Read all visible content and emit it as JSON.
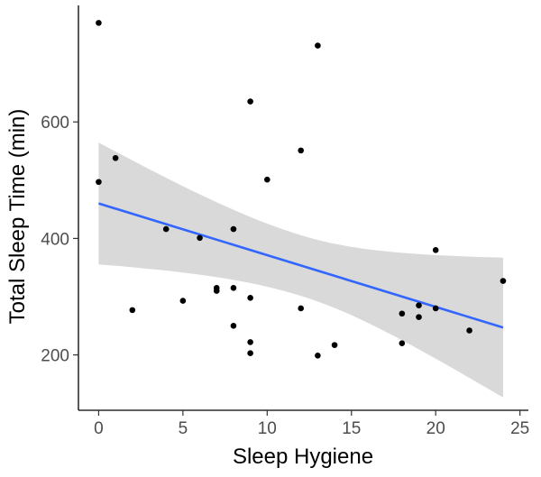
{
  "chart_data": {
    "type": "scatter",
    "title": "",
    "xlabel": "Sleep Hygiene",
    "ylabel": "Total Sleep Time (min)",
    "xlim": [
      -1.2,
      25.5
    ],
    "ylim": [
      105,
      800
    ],
    "xticks": [
      0,
      5,
      10,
      15,
      20,
      25
    ],
    "yticks": [
      200,
      400,
      600
    ],
    "grid": false,
    "legend": "none",
    "points": [
      {
        "x": 0,
        "y": 770
      },
      {
        "x": 0,
        "y": 497
      },
      {
        "x": 1,
        "y": 538
      },
      {
        "x": 2,
        "y": 277
      },
      {
        "x": 4,
        "y": 416
      },
      {
        "x": 5,
        "y": 293
      },
      {
        "x": 6,
        "y": 401
      },
      {
        "x": 7,
        "y": 315
      },
      {
        "x": 7,
        "y": 310
      },
      {
        "x": 8,
        "y": 416
      },
      {
        "x": 8,
        "y": 315
      },
      {
        "x": 8,
        "y": 250
      },
      {
        "x": 9,
        "y": 635
      },
      {
        "x": 9,
        "y": 298
      },
      {
        "x": 9,
        "y": 222
      },
      {
        "x": 9,
        "y": 203
      },
      {
        "x": 10,
        "y": 501
      },
      {
        "x": 12,
        "y": 551
      },
      {
        "x": 12,
        "y": 280
      },
      {
        "x": 13,
        "y": 731
      },
      {
        "x": 13,
        "y": 199
      },
      {
        "x": 14,
        "y": 217
      },
      {
        "x": 18,
        "y": 271
      },
      {
        "x": 18,
        "y": 220
      },
      {
        "x": 19,
        "y": 285
      },
      {
        "x": 19,
        "y": 265
      },
      {
        "x": 20,
        "y": 380
      },
      {
        "x": 20,
        "y": 280
      },
      {
        "x": 22,
        "y": 242
      },
      {
        "x": 24,
        "y": 327
      }
    ],
    "trend": {
      "method": "linear",
      "x": [
        0,
        24
      ],
      "y": [
        460,
        247
      ],
      "ci_lower": [
        356,
        127
      ],
      "ci_upper": [
        565,
        367
      ]
    },
    "colors": {
      "points": "#000000",
      "line": "#3366ff",
      "band": "#d9d9d9",
      "axis": "#000000"
    }
  }
}
